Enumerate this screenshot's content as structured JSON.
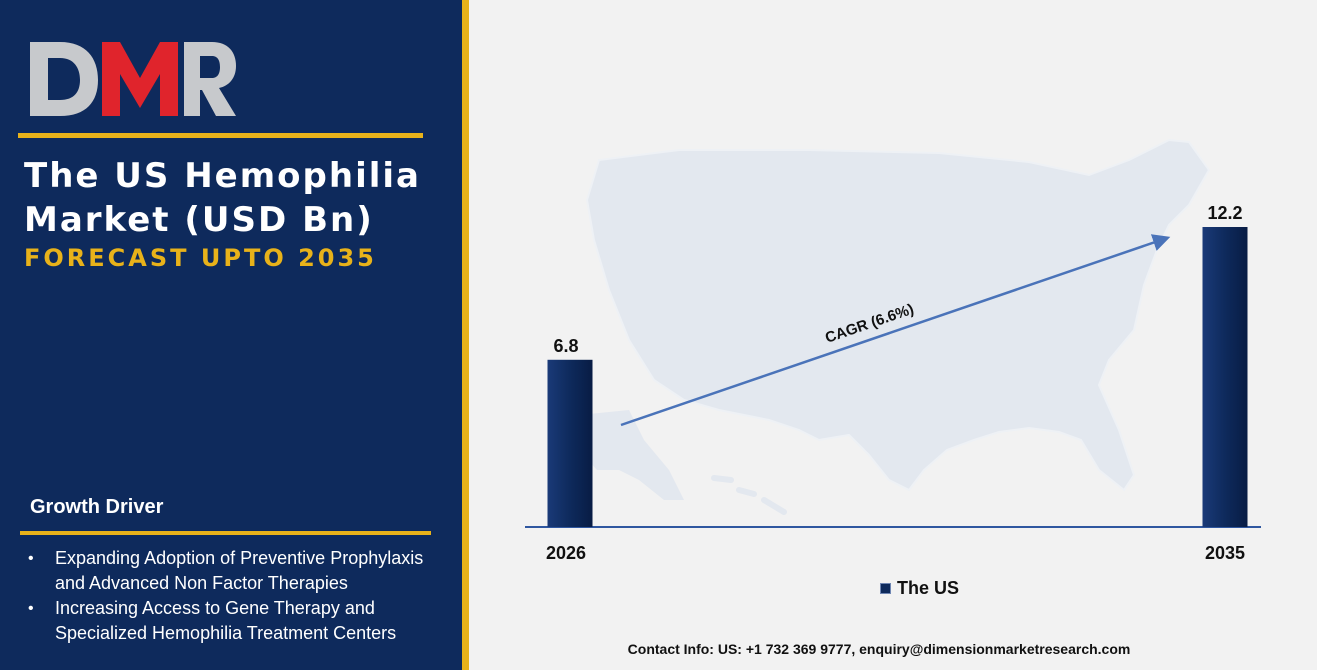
{
  "brand": {
    "logo_text": "DMR",
    "colors": {
      "logo_grey": "#c7c9cc",
      "logo_red": "#e0242c",
      "navy": "#0e2a5c",
      "gold": "#e8b21a"
    }
  },
  "header": {
    "title_line1": "The US Hemophilia",
    "title_line2": "Market (USD Bn)",
    "subtitle": "FORECAST UPTO 2035"
  },
  "growth_driver": {
    "heading": "Growth Driver",
    "items": [
      "Expanding Adoption of Preventive Prophylaxis and Advanced Non Factor Therapies",
      "Increasing Access to Gene Therapy and Specialized Hemophilia Treatment Centers"
    ]
  },
  "chart_data": {
    "type": "bar",
    "categories": [
      "2026",
      "2035"
    ],
    "series": [
      {
        "name": "The US",
        "values": [
          6.8,
          12.2
        ],
        "color": "#0e2a5c"
      }
    ],
    "title": "The US Hemophilia Market (USD Bn)",
    "subtitle": "FORECAST UPTO 2035",
    "xlabel": "",
    "ylabel": "",
    "ylim": [
      0,
      13.5
    ],
    "grid": false,
    "legend": "bottom-center",
    "annotation": {
      "text": "CAGR (6.6%)",
      "type": "arrow",
      "from": "2026",
      "to": "2035"
    }
  },
  "footer": {
    "contact": "Contact Info: US: +1 732 369 9777, enquiry@dimensionmarketresearch.com"
  }
}
